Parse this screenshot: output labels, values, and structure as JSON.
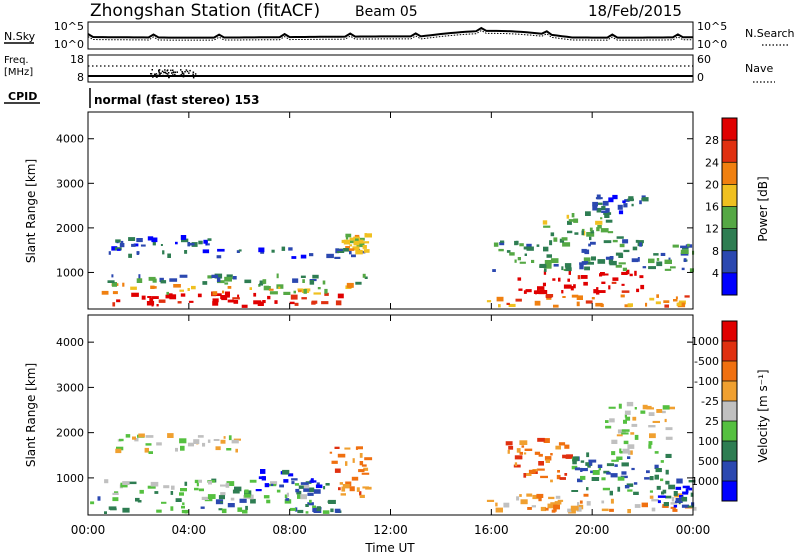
{
  "header": {
    "station_title": "Zhongshan Station (fitACF)",
    "beam_label": "Beam 05",
    "date_label": "18/Feb/2015"
  },
  "strip": {
    "nsky_label": "N.Sky",
    "nsky_ticks": [
      "10^5",
      "10^0"
    ],
    "nsearch_label": "N.Search",
    "nsearch_ticks": [
      "10^5",
      "10^0"
    ],
    "freq_label": "Freq.",
    "freq_unit": "[MHz]",
    "freq_ticks": [
      "18",
      "8"
    ],
    "nave_label": "Nave",
    "nave_ticks": [
      "60",
      "0"
    ],
    "cpid_label": "CPID",
    "cpid_value": "normal (fast stereo) 153"
  },
  "chart_data": [
    {
      "type": "heatmap",
      "ylabel": "Slant Range [km]",
      "xlabel": "",
      "yticks": [
        1000,
        2000,
        3000,
        4000
      ],
      "ylim": [
        180,
        4600
      ],
      "xlim": [
        0,
        24
      ],
      "colorbar_label": "Power [dB]",
      "colorbar_ticks": [
        "4",
        "8",
        "12",
        "16",
        "20",
        "24",
        "28"
      ],
      "colors": [
        "#0000ff",
        "#2b48b0",
        "#2e7d52",
        "#55a844",
        "#f0c020",
        "#f08010",
        "#e03010",
        "#e00000"
      ],
      "bands": [
        {
          "t0": 0.0,
          "t1": 10.0,
          "r0": 200,
          "r1": 480,
          "level": 7
        },
        {
          "t0": 0.5,
          "t1": 10.5,
          "r0": 480,
          "r1": 700,
          "level": 4
        },
        {
          "t0": 0.5,
          "t1": 11.0,
          "r0": 700,
          "r1": 900,
          "level": 2
        },
        {
          "t0": 0.8,
          "t1": 11.0,
          "r0": 1300,
          "r1": 1500,
          "level": 1
        },
        {
          "t0": 1.0,
          "t1": 5.0,
          "r0": 1550,
          "r1": 1750,
          "level": 1
        },
        {
          "t0": 10.0,
          "t1": 11.0,
          "r0": 1400,
          "r1": 1800,
          "level": 4
        },
        {
          "t0": 15.8,
          "t1": 24.0,
          "r0": 200,
          "r1": 450,
          "level": 5
        },
        {
          "t0": 17.0,
          "t1": 22.0,
          "r0": 500,
          "r1": 1000,
          "level": 7
        },
        {
          "t0": 16.0,
          "t1": 24.0,
          "r0": 1000,
          "r1": 1700,
          "level": 2
        },
        {
          "t0": 18.0,
          "t1": 21.0,
          "r0": 1700,
          "r1": 2300,
          "level": 3
        },
        {
          "t0": 20.0,
          "t1": 22.0,
          "r0": 2300,
          "r1": 2700,
          "level": 1
        }
      ]
    },
    {
      "type": "heatmap",
      "ylabel": "Slant Range [km]",
      "xlabel": "Time UT",
      "yticks": [
        1000,
        2000,
        3000,
        4000
      ],
      "ylim": [
        180,
        4600
      ],
      "xlim": [
        0,
        24
      ],
      "xticks": [
        "00:00",
        "04:00",
        "08:00",
        "12:00",
        "16:00",
        "20:00",
        "00:00"
      ],
      "colorbar_label": "Velocity [m s⁻¹]",
      "colorbar_ticks": [
        "1000",
        "500",
        "100",
        "25",
        "-25",
        "-100",
        "-500",
        "-1000"
      ],
      "colors": [
        "#0000ff",
        "#2b48b0",
        "#2e7d52",
        "#55c040",
        "#c0c0c0",
        "#f0a030",
        "#f07010",
        "#e03010",
        "#e00000"
      ],
      "bands": [
        {
          "t0": 0.0,
          "t1": 10.0,
          "r0": 200,
          "r1": 500,
          "level": 2
        },
        {
          "t0": 0.5,
          "t1": 9.0,
          "r0": 500,
          "r1": 900,
          "level": 3
        },
        {
          "t0": 1.0,
          "t1": 6.0,
          "r0": 1500,
          "r1": 1900,
          "level": 4
        },
        {
          "t0": 6.5,
          "t1": 9.5,
          "r0": 600,
          "r1": 1100,
          "level": 1
        },
        {
          "t0": 9.5,
          "t1": 11.0,
          "r0": 500,
          "r1": 1700,
          "level": 6
        },
        {
          "t0": 15.8,
          "t1": 24.0,
          "r0": 200,
          "r1": 600,
          "level": 5
        },
        {
          "t0": 16.5,
          "t1": 19.0,
          "r0": 900,
          "r1": 1800,
          "level": 6
        },
        {
          "t0": 19.0,
          "t1": 23.0,
          "r0": 600,
          "r1": 1500,
          "level": 2
        },
        {
          "t0": 20.5,
          "t1": 23.0,
          "r0": 1500,
          "r1": 2600,
          "level": 4
        },
        {
          "t0": 22.5,
          "t1": 24.0,
          "r0": 300,
          "r1": 900,
          "level": 1
        }
      ]
    }
  ]
}
